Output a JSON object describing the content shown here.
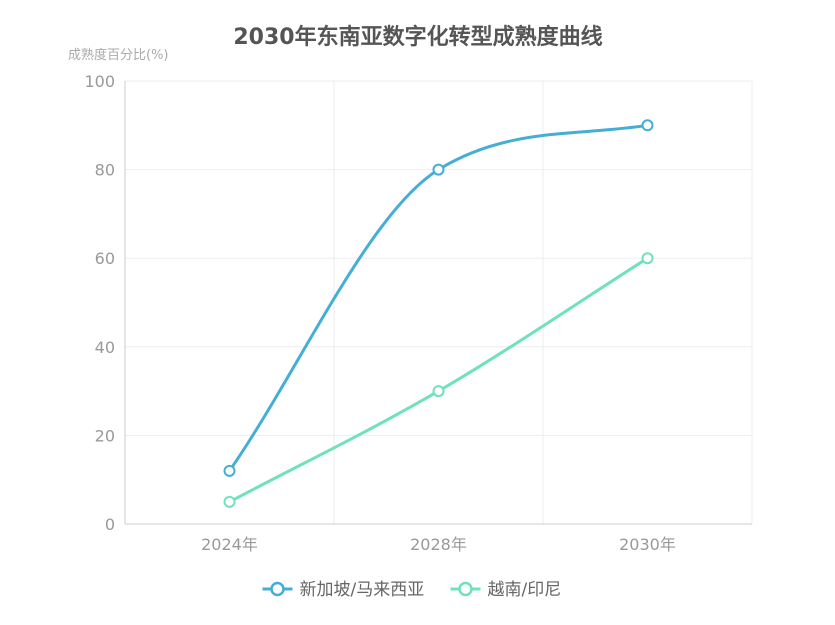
{
  "chart_data": {
    "type": "line",
    "title": "2030年东南亚数字化转型成熟度曲线",
    "ylabel": "成熟度百分比(%)",
    "xlabel": "",
    "categories": [
      "2024年",
      "2028年",
      "2030年"
    ],
    "ylim": [
      0,
      100
    ],
    "yticks": [
      "0",
      "20",
      "40",
      "60",
      "80",
      "100"
    ],
    "grid": true,
    "legend_position": "bottom",
    "series": [
      {
        "name": "新加坡/马来西亚",
        "values": [
          12,
          80,
          90
        ],
        "color": "#45aed6"
      },
      {
        "name": "越南/印尼",
        "values": [
          5,
          30,
          60
        ],
        "color": "#6fe2bb"
      }
    ]
  }
}
